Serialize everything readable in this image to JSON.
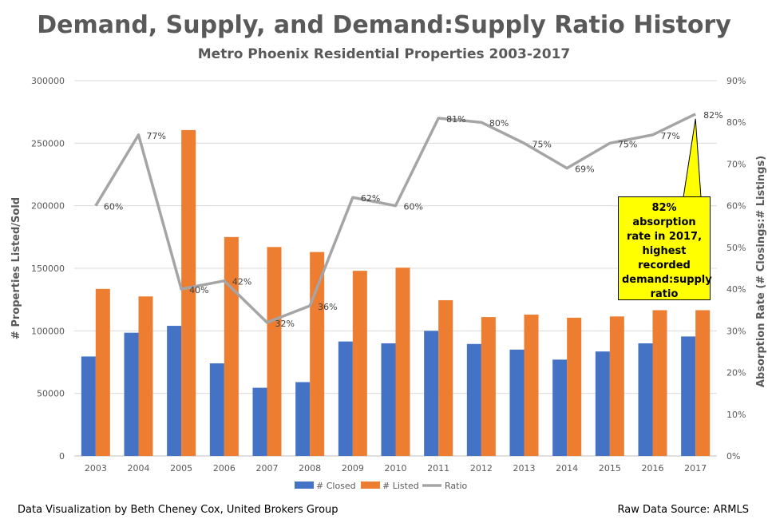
{
  "chart_data": {
    "type": "bar",
    "title": "Demand, Supply, and Demand:Supply Ratio History",
    "subtitle": "Metro Phoenix Residential Properties 2003-2017",
    "categories": [
      "2003",
      "2004",
      "2005",
      "2006",
      "2007",
      "2008",
      "2009",
      "2010",
      "2011",
      "2012",
      "2013",
      "2014",
      "2015",
      "2016",
      "2017"
    ],
    "series": [
      {
        "name": "# Closed",
        "type": "bar",
        "axis": "left",
        "color": "#4472C4",
        "values": [
          79500,
          98500,
          104000,
          74000,
          54500,
          59000,
          91500,
          90000,
          100000,
          89500,
          85000,
          77000,
          83500,
          90000,
          95500
        ]
      },
      {
        "name": "# Listed",
        "type": "bar",
        "axis": "left",
        "color": "#ED7D31",
        "values": [
          133500,
          127500,
          260500,
          175000,
          167000,
          163000,
          148000,
          150500,
          124500,
          111000,
          113000,
          110500,
          111500,
          116500,
          116500
        ]
      },
      {
        "name": "Ratio",
        "type": "line",
        "axis": "right",
        "color": "#A5A5A5",
        "values": [
          60,
          77,
          40,
          42,
          32,
          36,
          62,
          60,
          81,
          80,
          75,
          69,
          75,
          77,
          82
        ],
        "labels": [
          "60%",
          "77%",
          "40%",
          "42%",
          "32%",
          "36%",
          "62%",
          "60%",
          "81%",
          "80%",
          "75%",
          "69%",
          "75%",
          "77%",
          "82%"
        ]
      }
    ],
    "ylabel": "# Properties Listed/Sold",
    "y2label": "Absorption Rate (# Closings:# Listings)",
    "ylim": [
      0,
      300000
    ],
    "y2lim": [
      0,
      90
    ],
    "yticks": [
      "0",
      "50000",
      "100000",
      "150000",
      "200000",
      "250000",
      "300000"
    ],
    "y2ticks": [
      "0%",
      "10%",
      "20%",
      "30%",
      "40%",
      "50%",
      "60%",
      "70%",
      "80%",
      "90%"
    ],
    "legend_position": "bottom",
    "grid": true,
    "annotation": "82% absorption rate in 2017, highest recorded demand:supply ratio"
  },
  "footer": {
    "left": "Data Visualization by Beth Cheney Cox, United Brokers Group",
    "right": "Raw Data Source:  ARMLS"
  }
}
